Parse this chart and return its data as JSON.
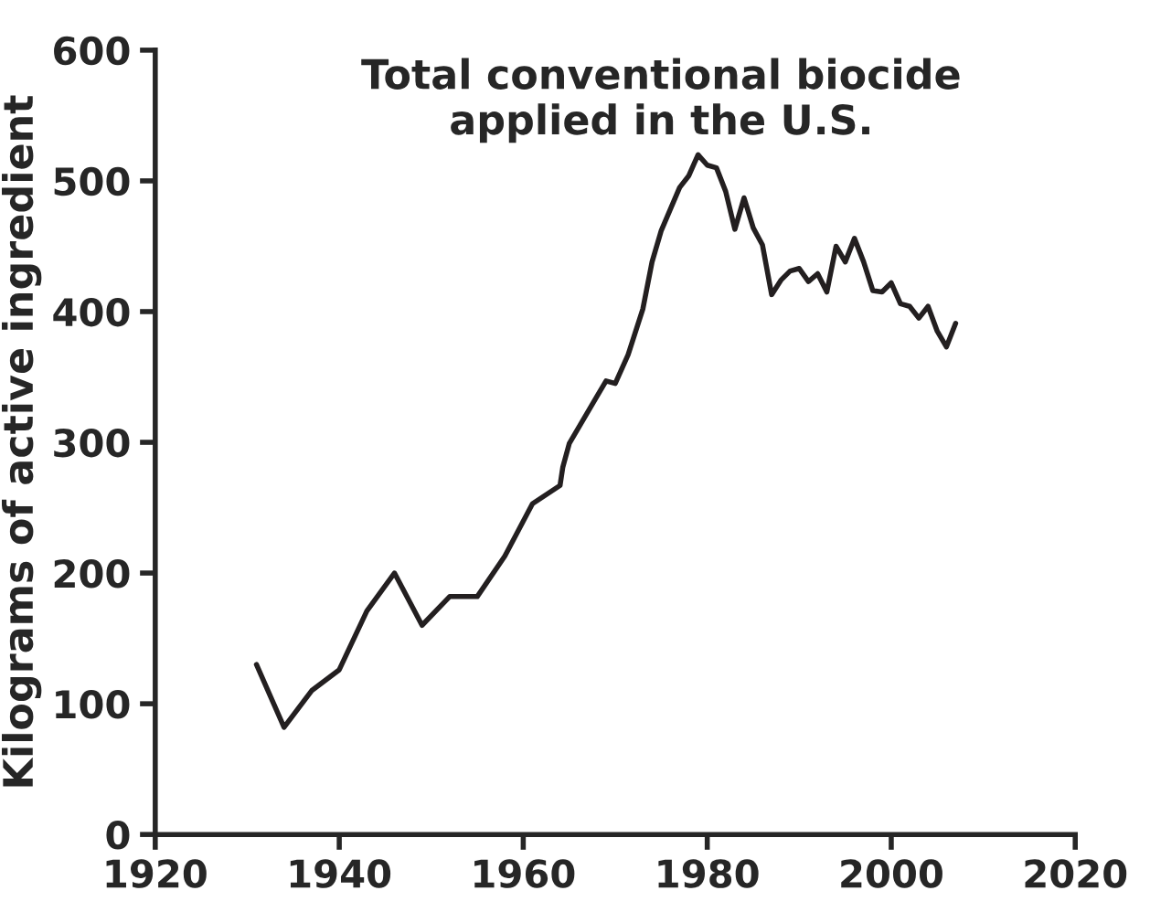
{
  "chart_data": {
    "type": "line",
    "title": "Total conventional biocide\napplied in the U.S.",
    "ylabel": "Kilograms of active ingredient",
    "x": [
      1931,
      1934,
      1937,
      1940,
      1943,
      1946,
      1949,
      1952,
      1955,
      1958,
      1961,
      1964,
      1964.3,
      1965,
      1968,
      1969,
      1970,
      1971.4,
      1973,
      1974,
      1975,
      1977,
      1978,
      1979,
      1980,
      1981,
      1982,
      1983,
      1984,
      1985,
      1986,
      1987,
      1988,
      1989,
      1990,
      1991,
      1992,
      1993,
      1994,
      1995,
      1996,
      1997,
      1998,
      1999,
      2000,
      2001,
      2002,
      2003,
      2004,
      2005,
      2006,
      2007
    ],
    "series": [
      {
        "color": "#231f20",
        "values": [
          130,
          82,
          110,
          126,
          171,
          200,
          160,
          182,
          182,
          213,
          253,
          267,
          281,
          299,
          335,
          347,
          345,
          367,
          402,
          438,
          462,
          495,
          504,
          520,
          512,
          510,
          492,
          463,
          487,
          464,
          451,
          413,
          424,
          431,
          433,
          423,
          429,
          415,
          450,
          438,
          456,
          438,
          416,
          415,
          422,
          406,
          404,
          395,
          404,
          385,
          373,
          391
        ]
      }
    ],
    "xlim": [
      1920,
      2020
    ],
    "xticks": [
      1920,
      1940,
      1960,
      1980,
      2000,
      2020
    ],
    "ylim": [
      0,
      600
    ],
    "yticks": [
      0,
      100,
      200,
      300,
      400,
      500,
      600
    ],
    "grid": false,
    "legend": false,
    "marker": "none",
    "line_style": "solid"
  }
}
